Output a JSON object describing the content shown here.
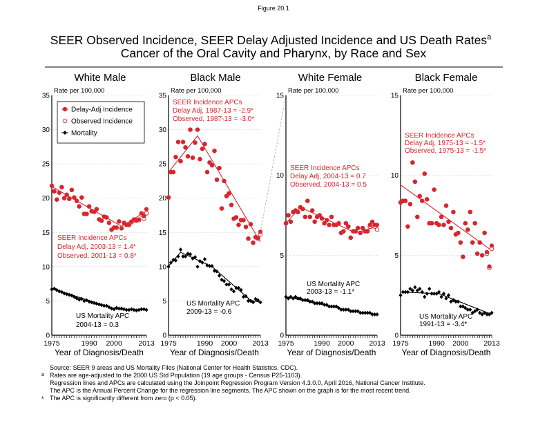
{
  "figure_label": "Figure 20.1",
  "title_line1": "SEER Observed Incidence, SEER Delay Adjusted Incidence and US Death Rates",
  "title_superscript": "a",
  "title_line2": "Cancer of the Oral Cavity and Pharynx, by Race and Sex",
  "colors": {
    "incidence": "#d7262e",
    "mortality": "#000000",
    "grid": "#d9d9d9",
    "connector": "#aaaaaa"
  },
  "legend": {
    "delay_adj": "Delay-Adj Incidence",
    "observed": "Observed Incidence",
    "mortality": "Mortality",
    "placement": "top-left of first panel"
  },
  "footnotes": {
    "source": "Source: SEER 9 areas and US Mortality Files (National Center for Health Statistics, CDC).",
    "a_mark": "a",
    "a_text": "Rates are age-adjusted to the 2000 US Std Population (19 age groups - Census P25-1103).",
    "regression": "Regression lines and APCs are calculated using the Joinpoint Regression Program Version 4.3.0.0, April 2016, National Cancer Institute.",
    "apc_def": "The APC is the Annual Percent Change for the regression line segments. The APC shown on the graph is for the most recent trend.",
    "star_mark": "*",
    "star_text": "The APC is significantly different from zero (p < 0.05)."
  },
  "chart_data": [
    {
      "type": "line",
      "title": "White Male",
      "ylabel": "Rate per 100,000",
      "xlabel": "Year of Diagnosis/Death",
      "x_range": [
        1975,
        2013
      ],
      "x_ticks": [
        "1975",
        "1990",
        "2000",
        "2013"
      ],
      "ylim": [
        0,
        35
      ],
      "y_ticks": [
        "0",
        "5",
        "10",
        "15",
        "20",
        "25",
        "30",
        "35"
      ],
      "grid": true,
      "incidence_apc": [
        "SEER Incidence APCs",
        "Delay Adj, 2003-13 = 1.4*",
        "Observed, 2001-13 = 0.8*"
      ],
      "mortality_apc": [
        "US Mortality APC",
        "2004-13 = 0.3"
      ],
      "delay_adj": [
        21.8,
        21.0,
        19.8,
        20.8,
        21.6,
        20.0,
        20.5,
        19.9,
        21.2,
        20.1,
        19.6,
        18.8,
        20.1,
        17.7,
        17.7,
        18.8,
        18.1,
        18.0,
        18.4,
        16.9,
        16.7,
        17.3,
        17.2,
        16.4,
        15.4,
        15.7,
        15.7,
        16.6,
        15.6,
        16.4,
        16.1,
        16.1,
        16.6,
        16.9,
        16.8,
        16.9,
        17.8,
        17.4,
        18.4
      ],
      "observed": [
        21.8,
        21.0,
        19.8,
        20.8,
        21.6,
        20.0,
        20.5,
        19.9,
        21.2,
        20.1,
        19.6,
        18.8,
        20.1,
        17.7,
        17.7,
        18.8,
        18.1,
        18.0,
        18.4,
        16.9,
        16.7,
        17.3,
        17.2,
        16.4,
        15.4,
        15.7,
        15.7,
        16.6,
        15.6,
        16.4,
        16.1,
        16.1,
        16.5,
        16.8,
        16.7,
        16.8,
        17.6,
        17.0,
        17.8
      ],
      "mortality": [
        6.7,
        6.8,
        6.6,
        6.4,
        6.3,
        6.1,
        6.0,
        5.9,
        5.8,
        5.6,
        5.4,
        5.2,
        5.3,
        5.0,
        5.1,
        4.9,
        4.8,
        4.7,
        4.6,
        4.5,
        4.4,
        4.3,
        4.3,
        4.1,
        3.9,
        3.8,
        4.0,
        3.9,
        3.9,
        3.8,
        3.7,
        3.7,
        3.8,
        3.7,
        3.6,
        3.7,
        3.8,
        3.8,
        3.7
      ],
      "incidence_trend": [
        [
          1975,
          21.7
        ],
        [
          2003,
          15.9
        ],
        [
          2013,
          18.1
        ]
      ],
      "mortality_trend": [
        [
          1975,
          6.8
        ],
        [
          2000,
          3.9
        ],
        [
          2004,
          3.7
        ],
        [
          2013,
          3.8
        ]
      ]
    },
    {
      "type": "line",
      "title": "Black Male",
      "ylabel": "Rate per 100,000",
      "xlabel": "Year of Diagnosis/Death",
      "x_range": [
        1975,
        2013
      ],
      "x_ticks": [
        "1975",
        "1990",
        "2000",
        "2013"
      ],
      "ylim": [
        0,
        35
      ],
      "y_ticks": [
        "0",
        "5",
        "10",
        "15",
        "20",
        "25",
        "30",
        "35"
      ],
      "grid": true,
      "incidence_apc": [
        "SEER Incidence APCs",
        "Delay Adj, 1987-13 = -2.9*",
        "Observed, 1987-13 = -3.0*"
      ],
      "mortality_apc": [
        "US Mortality APC",
        "2009-13 = -0.6"
      ],
      "delay_adj": [
        20.1,
        23.8,
        23.8,
        26.0,
        28.2,
        25.4,
        28.2,
        27.4,
        26.1,
        30.0,
        25.9,
        28.1,
        30.0,
        25.7,
        27.2,
        27.9,
        23.8,
        25.2,
        24.8,
        26.9,
        22.7,
        24.4,
        18.5,
        22.5,
        20.3,
        20.7,
        19.0,
        17.0,
        17.2,
        16.1,
        16.8,
        16.8,
        15.8,
        14.1,
        16.2,
        13.5,
        14.3,
        14.2,
        15.1
      ],
      "observed": [
        20.1,
        23.8,
        23.8,
        26.0,
        28.2,
        25.4,
        28.2,
        27.4,
        26.1,
        30.0,
        25.9,
        28.1,
        30.0,
        25.7,
        27.2,
        27.9,
        23.8,
        25.2,
        24.8,
        26.9,
        22.7,
        24.4,
        18.5,
        22.5,
        20.3,
        20.7,
        19.0,
        17.0,
        17.2,
        16.1,
        16.8,
        16.8,
        15.8,
        14.1,
        16.2,
        13.5,
        14.3,
        14.1,
        14.7
      ],
      "mortality": [
        10.0,
        10.6,
        11.0,
        10.9,
        11.5,
        12.5,
        11.5,
        11.5,
        11.9,
        11.8,
        11.2,
        11.4,
        10.0,
        10.8,
        10.6,
        11.1,
        10.2,
        10.1,
        10.1,
        9.4,
        9.3,
        8.7,
        8.1,
        7.9,
        7.4,
        7.4,
        6.7,
        6.4,
        6.9,
        6.9,
        6.6,
        5.6,
        5.7,
        5.0,
        5.0,
        4.8,
        5.3,
        5.1,
        4.8
      ],
      "incidence_trend": [
        [
          1975,
          23.8
        ],
        [
          1987,
          29.1
        ],
        [
          2013,
          13.6
        ]
      ],
      "mortality_trend": [
        [
          1975,
          10.1
        ],
        [
          1980,
          12.1
        ],
        [
          1993,
          10.0
        ],
        [
          2009,
          5.1
        ],
        [
          2013,
          4.8
        ]
      ]
    },
    {
      "type": "line",
      "title": "White Female",
      "ylabel": "Rate per 100,000",
      "xlabel": "Year of Diagnosis/Death",
      "x_range": [
        1975,
        2013
      ],
      "x_ticks": [
        "1975",
        "1990",
        "2000",
        "2013"
      ],
      "ylim": [
        0,
        15
      ],
      "y_ticks": [
        "0",
        "5",
        "10",
        "15"
      ],
      "grid": true,
      "incidence_apc": [
        "SEER Incidence APCs",
        "Delay Adj, 2004-13 = 0.7",
        "Observed, 2004-13 = 0.5"
      ],
      "mortality_apc": [
        "US Mortality APC",
        "2003-13 = -1.1*"
      ],
      "delay_adj": [
        7.0,
        7.5,
        7.1,
        7.7,
        7.8,
        7.7,
        8.0,
        7.9,
        7.4,
        8.4,
        7.4,
        7.8,
        7.1,
        7.4,
        7.5,
        7.3,
        7.0,
        7.2,
        6.9,
        7.4,
        6.9,
        6.9,
        7.0,
        6.4,
        6.5,
        7.0,
        6.8,
        6.1,
        6.5,
        6.5,
        6.7,
        6.4,
        6.7,
        6.5,
        6.5,
        6.9,
        7.1,
        6.9,
        6.9
      ],
      "observed": [
        7.0,
        7.5,
        7.1,
        7.7,
        7.8,
        7.7,
        8.0,
        7.9,
        7.4,
        8.4,
        7.4,
        7.8,
        7.1,
        7.4,
        7.5,
        7.3,
        7.0,
        7.2,
        6.9,
        7.4,
        6.9,
        6.9,
        7.0,
        6.4,
        6.5,
        7.0,
        6.8,
        6.1,
        6.5,
        6.5,
        6.7,
        6.4,
        6.7,
        6.5,
        6.5,
        6.8,
        7.0,
        6.8,
        6.6
      ],
      "mortality": [
        2.4,
        2.3,
        2.4,
        2.3,
        2.4,
        2.3,
        2.3,
        2.2,
        2.2,
        2.2,
        2.1,
        2.1,
        2.0,
        2.0,
        2.0,
        2.0,
        1.9,
        1.9,
        1.8,
        1.8,
        1.8,
        1.8,
        1.7,
        1.6,
        1.6,
        1.6,
        1.6,
        1.5,
        1.5,
        1.5,
        1.5,
        1.4,
        1.4,
        1.4,
        1.4,
        1.4,
        1.3,
        1.3,
        1.3
      ],
      "incidence_trend": [
        [
          1975,
          7.0
        ],
        [
          1981,
          8.0
        ],
        [
          2004,
          6.4
        ],
        [
          2013,
          6.8
        ]
      ],
      "mortality_trend": [
        [
          1975,
          2.4
        ],
        [
          2003,
          1.5
        ],
        [
          2013,
          1.3
        ]
      ]
    },
    {
      "type": "line",
      "title": "Black Female",
      "ylabel": "Rate per 100,000",
      "xlabel": "Year of Diagnosis/Death",
      "x_range": [
        1975,
        2013
      ],
      "x_ticks": [
        "1975",
        "1990",
        "2000",
        "2013"
      ],
      "ylim": [
        0,
        15
      ],
      "y_ticks": [
        "0",
        "5",
        "10",
        "15"
      ],
      "grid": true,
      "incidence_apc": [
        "SEER Incidence APCs",
        "Delay Adj, 1975-13 = -1.5*",
        "Observed, 1975-13 = -1.5*"
      ],
      "mortality_apc": [
        "US Mortality APC",
        "1991-13 = -3.4*"
      ],
      "delay_adj": [
        8.3,
        8.4,
        8.4,
        6.8,
        8.2,
        10.8,
        9.6,
        7.4,
        8.7,
        8.4,
        10.1,
        8.5,
        7.0,
        7.0,
        9.1,
        7.0,
        6.9,
        7.4,
        6.9,
        8.1,
        7.1,
        6.7,
        7.7,
        6.3,
        6.4,
        5.8,
        4.9,
        7.0,
        6.6,
        7.7,
        5.8,
        7.0,
        5.1,
        5.8,
        5.0,
        6.4,
        5.2,
        4.3,
        5.6
      ],
      "observed": [
        8.3,
        8.4,
        8.4,
        6.8,
        8.2,
        10.8,
        9.6,
        7.4,
        8.7,
        8.4,
        10.1,
        8.5,
        7.0,
        7.0,
        9.1,
        7.0,
        6.9,
        7.4,
        6.9,
        8.1,
        7.1,
        6.7,
        7.7,
        6.3,
        6.4,
        5.8,
        4.9,
        7.0,
        6.6,
        7.7,
        5.8,
        7.0,
        5.1,
        5.8,
        5.0,
        6.4,
        5.1,
        4.2,
        5.4
      ],
      "mortality": [
        2.5,
        2.7,
        2.7,
        2.7,
        2.9,
        2.8,
        3.0,
        2.8,
        2.9,
        2.7,
        2.4,
        2.6,
        2.9,
        2.6,
        2.6,
        2.6,
        2.7,
        2.4,
        2.6,
        2.3,
        2.5,
        2.1,
        2.2,
        2.1,
        2.1,
        1.8,
        1.8,
        1.7,
        1.6,
        1.6,
        1.4,
        1.5,
        1.6,
        1.4,
        1.3,
        1.4,
        1.3,
        1.3,
        1.4
      ],
      "incidence_trend": [
        [
          1975,
          9.4
        ],
        [
          2013,
          5.3
        ]
      ],
      "mortality_trend": [
        [
          1975,
          2.7
        ],
        [
          1991,
          2.6
        ],
        [
          2013,
          1.3
        ]
      ]
    }
  ]
}
